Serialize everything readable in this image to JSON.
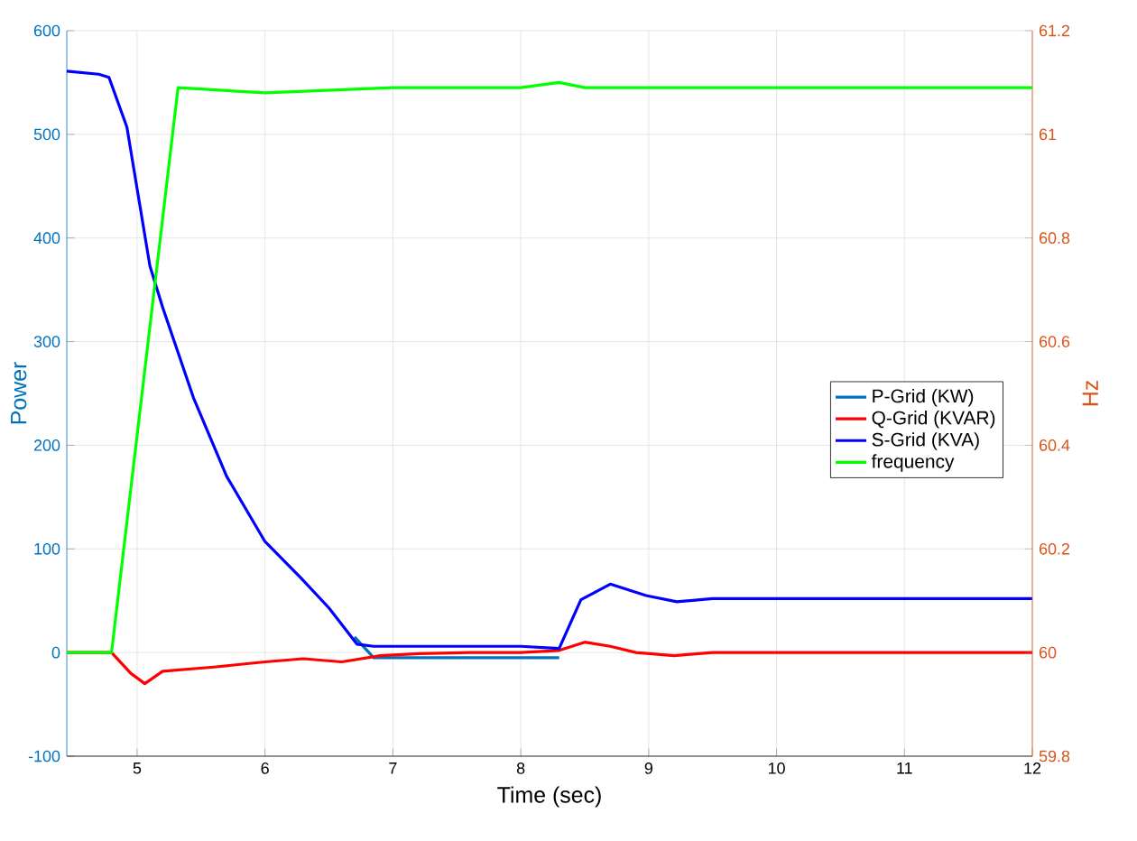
{
  "chart_data": {
    "type": "line",
    "xlabel": "Time (sec)",
    "ylabel": "Power",
    "y2label": "Hz",
    "xlim": [
      4.45,
      12
    ],
    "xticks": [
      5,
      6,
      7,
      8,
      9,
      10,
      11,
      12
    ],
    "ylim": [
      -100,
      600
    ],
    "yticks": [
      -100,
      0,
      100,
      200,
      300,
      400,
      500,
      600
    ],
    "y2lim": [
      59.8,
      61.2
    ],
    "y2ticks": [
      59.8,
      60,
      60.2,
      60.4,
      60.6,
      60.8,
      61,
      61.2
    ],
    "grid": true,
    "legend": "right",
    "line_style": "solid",
    "marker": "none",
    "series": [
      {
        "name": "P-Grid (KW)",
        "color": "#0072bd",
        "x": [
          6.7,
          6.85,
          7.2,
          7.6,
          8.0,
          8.3
        ],
        "values": [
          15,
          -5,
          -5,
          -5,
          -5,
          -5
        ]
      },
      {
        "name": "Q-Grid (KVAR)",
        "color": "#ff0000",
        "x": [
          4.45,
          4.8,
          4.95,
          5.06,
          5.2,
          5.6,
          6.0,
          6.3,
          6.6,
          6.9,
          7.2,
          7.6,
          8.0,
          8.3,
          8.5,
          8.7,
          8.9,
          9.2,
          9.5,
          10,
          11,
          12
        ],
        "values": [
          0,
          0,
          -20,
          -30,
          -18,
          -14,
          -9,
          -6,
          -9,
          -3,
          -1,
          0,
          0,
          2,
          10,
          6,
          0,
          -3,
          0,
          0,
          0,
          0
        ]
      },
      {
        "name": "S-Grid (KVA)",
        "color": "#0000ff",
        "x": [
          4.45,
          4.7,
          4.78,
          4.92,
          5.1,
          5.2,
          5.44,
          5.7,
          6.0,
          6.28,
          6.5,
          6.72,
          6.85,
          7.5,
          8.0,
          8.3,
          8.47,
          8.7,
          8.98,
          9.22,
          9.5,
          10,
          11,
          12
        ],
        "values": [
          561,
          558,
          555,
          507,
          373,
          333,
          246,
          170,
          107,
          72,
          43,
          8,
          6,
          6,
          6,
          4,
          51,
          66,
          55,
          49,
          52,
          52,
          52,
          52
        ]
      },
      {
        "name": "frequency",
        "color": "#00ff00",
        "axis": "y2",
        "x": [
          4.45,
          4.8,
          5.32,
          6,
          7,
          8,
          8.3,
          8.5,
          9,
          10,
          11,
          12
        ],
        "values": [
          60,
          60,
          61.09,
          61.08,
          61.09,
          61.09,
          61.1,
          61.09,
          61.09,
          61.09,
          61.09,
          61.09
        ]
      }
    ]
  }
}
